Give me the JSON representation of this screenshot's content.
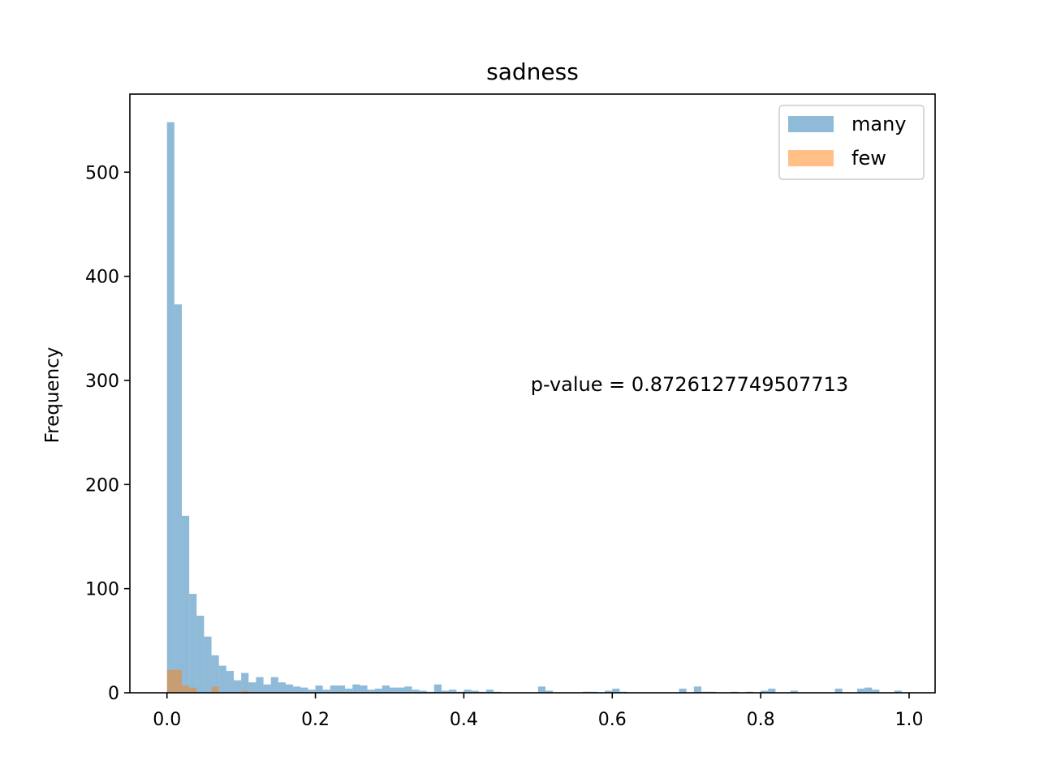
{
  "chart_data": {
    "type": "histogram",
    "title": "sadness",
    "xlabel": "",
    "ylabel": "Frequency",
    "xlim": [
      -0.05,
      1.035
    ],
    "ylim": [
      0,
      575
    ],
    "x_ticks": [
      0.0,
      0.2,
      0.4,
      0.6,
      0.8,
      1.0
    ],
    "x_tick_labels": [
      "0.0",
      "0.2",
      "0.4",
      "0.6",
      "0.8",
      "1.0"
    ],
    "y_ticks": [
      0,
      100,
      200,
      300,
      400,
      500
    ],
    "y_tick_labels": [
      "0",
      "100",
      "200",
      "300",
      "400",
      "500"
    ],
    "legend_position": "top-right",
    "bin_width": 0.01,
    "series": [
      {
        "name": "many",
        "color": "#1f77b4",
        "opacity": 0.5,
        "bin_starts": [
          0.0,
          0.01,
          0.02,
          0.03,
          0.04,
          0.05,
          0.06,
          0.07,
          0.08,
          0.09,
          0.1,
          0.11,
          0.12,
          0.13,
          0.14,
          0.15,
          0.16,
          0.17,
          0.18,
          0.19,
          0.2,
          0.21,
          0.22,
          0.23,
          0.24,
          0.25,
          0.26,
          0.27,
          0.28,
          0.29,
          0.3,
          0.31,
          0.32,
          0.33,
          0.34,
          0.35,
          0.36,
          0.37,
          0.38,
          0.39,
          0.4,
          0.41,
          0.42,
          0.43,
          0.44,
          0.5,
          0.51,
          0.56,
          0.57,
          0.59,
          0.6,
          0.61,
          0.69,
          0.71,
          0.72,
          0.73,
          0.76,
          0.78,
          0.8,
          0.81,
          0.84,
          0.9,
          0.93,
          0.94,
          0.95,
          0.98
        ],
        "values": [
          548,
          373,
          170,
          95,
          74,
          54,
          36,
          26,
          21,
          12,
          19,
          10,
          15,
          8,
          15,
          10,
          8,
          6,
          5,
          3,
          7,
          3,
          7,
          7,
          4,
          8,
          7,
          3,
          4,
          7,
          5,
          5,
          6,
          3,
          2,
          1,
          8,
          2,
          3,
          1,
          3,
          2,
          1,
          3,
          1,
          6,
          2,
          1,
          1,
          2,
          4,
          1,
          4,
          6,
          1,
          1,
          1,
          1,
          2,
          4,
          2,
          4,
          4,
          5,
          3,
          2
        ]
      },
      {
        "name": "few",
        "color": "#ff7f0e",
        "opacity": 0.5,
        "bin_starts": [
          0.0,
          0.01,
          0.02,
          0.03,
          0.06,
          0.1
        ],
        "values": [
          22,
          22,
          7,
          5,
          6,
          2
        ]
      }
    ],
    "annotations": [
      {
        "text": "p-value = 0.8726127749507713",
        "x": 0.49,
        "y": 290
      }
    ]
  }
}
